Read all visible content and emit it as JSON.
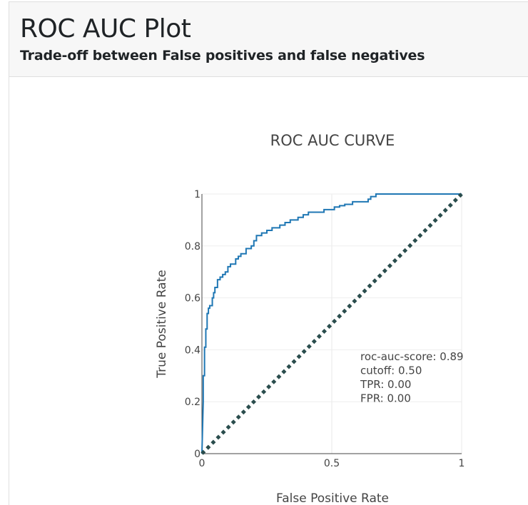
{
  "header": {
    "title": "ROC AUC Plot",
    "subtitle": "Trade-off between False positives and false negatives"
  },
  "chart_data": {
    "type": "line",
    "title": "ROC AUC CURVE",
    "xlabel": "False Positive Rate",
    "ylabel": "True Positive Rate",
    "xlim": [
      0,
      1
    ],
    "ylim": [
      0,
      1
    ],
    "x_ticks": [
      0,
      0.5,
      1
    ],
    "x_tick_labels": [
      "0",
      "0.5",
      "1"
    ],
    "y_ticks": [
      0,
      0.2,
      0.4,
      0.6,
      0.8,
      1
    ],
    "y_tick_labels": [
      "0",
      "0.2",
      "0.4",
      "0.6",
      "0.8",
      "1"
    ],
    "grid": true,
    "series": [
      {
        "color": "#1f77b4",
        "style": "solid",
        "x": [
          0,
          0.005,
          0.005,
          0.01,
          0.01,
          0.015,
          0.015,
          0.02,
          0.02,
          0.025,
          0.025,
          0.03,
          0.03,
          0.04,
          0.04,
          0.045,
          0.045,
          0.05,
          0.05,
          0.06,
          0.06,
          0.07,
          0.07,
          0.08,
          0.08,
          0.09,
          0.09,
          0.1,
          0.1,
          0.11,
          0.11,
          0.13,
          0.13,
          0.14,
          0.14,
          0.15,
          0.15,
          0.17,
          0.17,
          0.19,
          0.19,
          0.2,
          0.2,
          0.21,
          0.21,
          0.23,
          0.23,
          0.25,
          0.25,
          0.27,
          0.27,
          0.3,
          0.3,
          0.32,
          0.32,
          0.34,
          0.34,
          0.37,
          0.37,
          0.39,
          0.39,
          0.41,
          0.41,
          0.44,
          0.44,
          0.47,
          0.47,
          0.51,
          0.51,
          0.53,
          0.53,
          0.55,
          0.55,
          0.58,
          0.58,
          0.64,
          0.64,
          0.65,
          0.65,
          0.67,
          0.67,
          0.7,
          1
        ],
        "y": [
          0,
          0.2,
          0.3,
          0.3,
          0.41,
          0.41,
          0.48,
          0.48,
          0.54,
          0.54,
          0.56,
          0.56,
          0.57,
          0.57,
          0.6,
          0.6,
          0.62,
          0.62,
          0.64,
          0.64,
          0.67,
          0.67,
          0.68,
          0.68,
          0.69,
          0.69,
          0.7,
          0.7,
          0.72,
          0.72,
          0.73,
          0.73,
          0.75,
          0.75,
          0.76,
          0.76,
          0.77,
          0.77,
          0.79,
          0.79,
          0.8,
          0.8,
          0.82,
          0.82,
          0.84,
          0.84,
          0.85,
          0.85,
          0.86,
          0.86,
          0.87,
          0.87,
          0.88,
          0.88,
          0.89,
          0.89,
          0.9,
          0.9,
          0.91,
          0.91,
          0.92,
          0.92,
          0.93,
          0.93,
          0.93,
          0.93,
          0.94,
          0.94,
          0.95,
          0.95,
          0.955,
          0.955,
          0.96,
          0.96,
          0.97,
          0.97,
          0.98,
          0.98,
          0.99,
          0.99,
          1,
          1,
          1
        ]
      },
      {
        "color": "#2a4d4d",
        "style": "dotted",
        "x": [
          0,
          1
        ],
        "y": [
          0,
          1
        ]
      }
    ],
    "annotation": {
      "lines": [
        "roc-auc-score: 0.89",
        "cutoff: 0.50",
        "TPR: 0.00",
        "FPR: 0.00"
      ],
      "x": 0.61,
      "y": 0.36
    }
  }
}
